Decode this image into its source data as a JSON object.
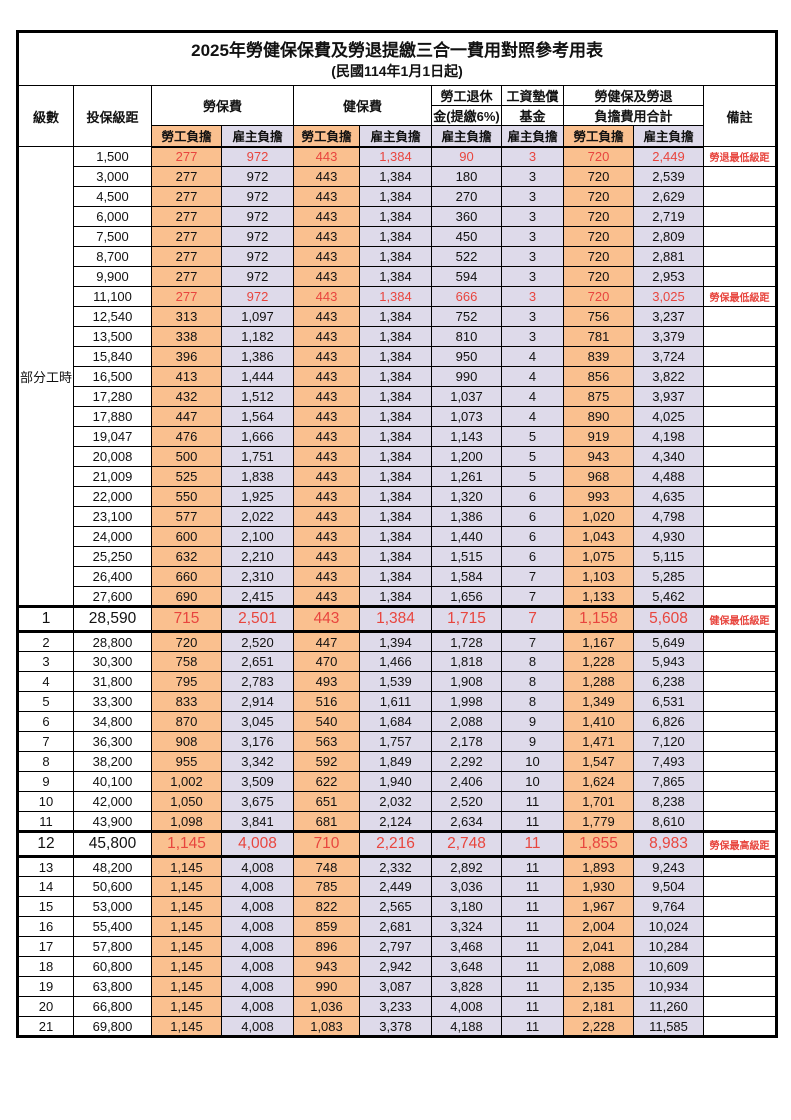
{
  "title": "2025年勞健保保費及勞退提繳三合一費用對照參考用表",
  "subtitle": "(民國114年1月1日起)",
  "columns": {
    "level": "級數",
    "salary": "投保級距",
    "labor_fee": "勞保費",
    "health_fee": "健保費",
    "pension_line1": "勞工退休",
    "pension_line2": "金(提繳6%)",
    "wage_fund_line1": "工資墊償",
    "wage_fund_line2": "基金",
    "total_line1": "勞健保及勞退",
    "total_line2": "負擔費用合計",
    "note": "備註",
    "employee_share": "勞工負擔",
    "employer_share": "雇主負擔"
  },
  "colors": {
    "employee_bg": "#FAC08F",
    "employer_bg": "#DEDAEA",
    "highlight_red": "#E8453E",
    "grid": "#000000"
  },
  "chart_data": {
    "type": "table",
    "group_label": "部分工時",
    "group_span": 23,
    "value_columns": [
      "勞保費-勞工負擔",
      "勞保費-雇主負擔",
      "健保費-勞工負擔",
      "健保費-雇主負擔",
      "勞工退休金(提繳6%)-雇主負擔",
      "工資墊償基金-雇主負擔",
      "合計-勞工負擔",
      "合計-雇主負擔"
    ],
    "rows": [
      {
        "salary": "1,500",
        "values": [
          "277",
          "972",
          "443",
          "1,384",
          "90",
          "3",
          "720",
          "2,449"
        ],
        "note": "勞退最低級距",
        "red": true
      },
      {
        "salary": "3,000",
        "values": [
          "277",
          "972",
          "443",
          "1,384",
          "180",
          "3",
          "720",
          "2,539"
        ],
        "note": ""
      },
      {
        "salary": "4,500",
        "values": [
          "277",
          "972",
          "443",
          "1,384",
          "270",
          "3",
          "720",
          "2,629"
        ],
        "note": ""
      },
      {
        "salary": "6,000",
        "values": [
          "277",
          "972",
          "443",
          "1,384",
          "360",
          "3",
          "720",
          "2,719"
        ],
        "note": ""
      },
      {
        "salary": "7,500",
        "values": [
          "277",
          "972",
          "443",
          "1,384",
          "450",
          "3",
          "720",
          "2,809"
        ],
        "note": ""
      },
      {
        "salary": "8,700",
        "values": [
          "277",
          "972",
          "443",
          "1,384",
          "522",
          "3",
          "720",
          "2,881"
        ],
        "note": ""
      },
      {
        "salary": "9,900",
        "values": [
          "277",
          "972",
          "443",
          "1,384",
          "594",
          "3",
          "720",
          "2,953"
        ],
        "note": ""
      },
      {
        "salary": "11,100",
        "values": [
          "277",
          "972",
          "443",
          "1,384",
          "666",
          "3",
          "720",
          "3,025"
        ],
        "note": "勞保最低級距",
        "red": true
      },
      {
        "salary": "12,540",
        "values": [
          "313",
          "1,097",
          "443",
          "1,384",
          "752",
          "3",
          "756",
          "3,237"
        ],
        "note": ""
      },
      {
        "salary": "13,500",
        "values": [
          "338",
          "1,182",
          "443",
          "1,384",
          "810",
          "3",
          "781",
          "3,379"
        ],
        "note": ""
      },
      {
        "salary": "15,840",
        "values": [
          "396",
          "1,386",
          "443",
          "1,384",
          "950",
          "4",
          "839",
          "3,724"
        ],
        "note": ""
      },
      {
        "salary": "16,500",
        "values": [
          "413",
          "1,444",
          "443",
          "1,384",
          "990",
          "4",
          "856",
          "3,822"
        ],
        "note": ""
      },
      {
        "salary": "17,280",
        "values": [
          "432",
          "1,512",
          "443",
          "1,384",
          "1,037",
          "4",
          "875",
          "3,937"
        ],
        "note": ""
      },
      {
        "salary": "17,880",
        "values": [
          "447",
          "1,564",
          "443",
          "1,384",
          "1,073",
          "4",
          "890",
          "4,025"
        ],
        "note": ""
      },
      {
        "salary": "19,047",
        "values": [
          "476",
          "1,666",
          "443",
          "1,384",
          "1,143",
          "5",
          "919",
          "4,198"
        ],
        "note": ""
      },
      {
        "salary": "20,008",
        "values": [
          "500",
          "1,751",
          "443",
          "1,384",
          "1,200",
          "5",
          "943",
          "4,340"
        ],
        "note": ""
      },
      {
        "salary": "21,009",
        "values": [
          "525",
          "1,838",
          "443",
          "1,384",
          "1,261",
          "5",
          "968",
          "4,488"
        ],
        "note": ""
      },
      {
        "salary": "22,000",
        "values": [
          "550",
          "1,925",
          "443",
          "1,384",
          "1,320",
          "6",
          "993",
          "4,635"
        ],
        "note": ""
      },
      {
        "salary": "23,100",
        "values": [
          "577",
          "2,022",
          "443",
          "1,384",
          "1,386",
          "6",
          "1,020",
          "4,798"
        ],
        "note": ""
      },
      {
        "salary": "24,000",
        "values": [
          "600",
          "2,100",
          "443",
          "1,384",
          "1,440",
          "6",
          "1,043",
          "4,930"
        ],
        "note": ""
      },
      {
        "salary": "25,250",
        "values": [
          "632",
          "2,210",
          "443",
          "1,384",
          "1,515",
          "6",
          "1,075",
          "5,115"
        ],
        "note": ""
      },
      {
        "salary": "26,400",
        "values": [
          "660",
          "2,310",
          "443",
          "1,384",
          "1,584",
          "7",
          "1,103",
          "5,285"
        ],
        "note": ""
      },
      {
        "salary": "27,600",
        "values": [
          "690",
          "2,415",
          "443",
          "1,384",
          "1,656",
          "7",
          "1,133",
          "5,462"
        ],
        "note": ""
      },
      {
        "level": "1",
        "salary": "28,590",
        "values": [
          "715",
          "2,501",
          "443",
          "1,384",
          "1,715",
          "7",
          "1,158",
          "5,608"
        ],
        "note": "健保最低級距",
        "red": true,
        "big": true
      },
      {
        "level": "2",
        "salary": "28,800",
        "values": [
          "720",
          "2,520",
          "447",
          "1,394",
          "1,728",
          "7",
          "1,167",
          "5,649"
        ],
        "note": ""
      },
      {
        "level": "3",
        "salary": "30,300",
        "values": [
          "758",
          "2,651",
          "470",
          "1,466",
          "1,818",
          "8",
          "1,228",
          "5,943"
        ],
        "note": ""
      },
      {
        "level": "4",
        "salary": "31,800",
        "values": [
          "795",
          "2,783",
          "493",
          "1,539",
          "1,908",
          "8",
          "1,288",
          "6,238"
        ],
        "note": ""
      },
      {
        "level": "5",
        "salary": "33,300",
        "values": [
          "833",
          "2,914",
          "516",
          "1,611",
          "1,998",
          "8",
          "1,349",
          "6,531"
        ],
        "note": ""
      },
      {
        "level": "6",
        "salary": "34,800",
        "values": [
          "870",
          "3,045",
          "540",
          "1,684",
          "2,088",
          "9",
          "1,410",
          "6,826"
        ],
        "note": ""
      },
      {
        "level": "7",
        "salary": "36,300",
        "values": [
          "908",
          "3,176",
          "563",
          "1,757",
          "2,178",
          "9",
          "1,471",
          "7,120"
        ],
        "note": ""
      },
      {
        "level": "8",
        "salary": "38,200",
        "values": [
          "955",
          "3,342",
          "592",
          "1,849",
          "2,292",
          "10",
          "1,547",
          "7,493"
        ],
        "note": ""
      },
      {
        "level": "9",
        "salary": "40,100",
        "values": [
          "1,002",
          "3,509",
          "622",
          "1,940",
          "2,406",
          "10",
          "1,624",
          "7,865"
        ],
        "note": ""
      },
      {
        "level": "10",
        "salary": "42,000",
        "values": [
          "1,050",
          "3,675",
          "651",
          "2,032",
          "2,520",
          "11",
          "1,701",
          "8,238"
        ],
        "note": ""
      },
      {
        "level": "11",
        "salary": "43,900",
        "values": [
          "1,098",
          "3,841",
          "681",
          "2,124",
          "2,634",
          "11",
          "1,779",
          "8,610"
        ],
        "note": ""
      },
      {
        "level": "12",
        "salary": "45,800",
        "values": [
          "1,145",
          "4,008",
          "710",
          "2,216",
          "2,748",
          "11",
          "1,855",
          "8,983"
        ],
        "note": "勞保最高級距",
        "red": true,
        "big": true
      },
      {
        "level": "13",
        "salary": "48,200",
        "values": [
          "1,145",
          "4,008",
          "748",
          "2,332",
          "2,892",
          "11",
          "1,893",
          "9,243"
        ],
        "note": ""
      },
      {
        "level": "14",
        "salary": "50,600",
        "values": [
          "1,145",
          "4,008",
          "785",
          "2,449",
          "3,036",
          "11",
          "1,930",
          "9,504"
        ],
        "note": ""
      },
      {
        "level": "15",
        "salary": "53,000",
        "values": [
          "1,145",
          "4,008",
          "822",
          "2,565",
          "3,180",
          "11",
          "1,967",
          "9,764"
        ],
        "note": ""
      },
      {
        "level": "16",
        "salary": "55,400",
        "values": [
          "1,145",
          "4,008",
          "859",
          "2,681",
          "3,324",
          "11",
          "2,004",
          "10,024"
        ],
        "note": ""
      },
      {
        "level": "17",
        "salary": "57,800",
        "values": [
          "1,145",
          "4,008",
          "896",
          "2,797",
          "3,468",
          "11",
          "2,041",
          "10,284"
        ],
        "note": ""
      },
      {
        "level": "18",
        "salary": "60,800",
        "values": [
          "1,145",
          "4,008",
          "943",
          "2,942",
          "3,648",
          "11",
          "2,088",
          "10,609"
        ],
        "note": ""
      },
      {
        "level": "19",
        "salary": "63,800",
        "values": [
          "1,145",
          "4,008",
          "990",
          "3,087",
          "3,828",
          "11",
          "2,135",
          "10,934"
        ],
        "note": ""
      },
      {
        "level": "20",
        "salary": "66,800",
        "values": [
          "1,145",
          "4,008",
          "1,036",
          "3,233",
          "4,008",
          "11",
          "2,181",
          "11,260"
        ],
        "note": ""
      },
      {
        "level": "21",
        "salary": "69,800",
        "values": [
          "1,145",
          "4,008",
          "1,083",
          "3,378",
          "4,188",
          "11",
          "2,228",
          "11,585"
        ],
        "note": ""
      }
    ]
  }
}
